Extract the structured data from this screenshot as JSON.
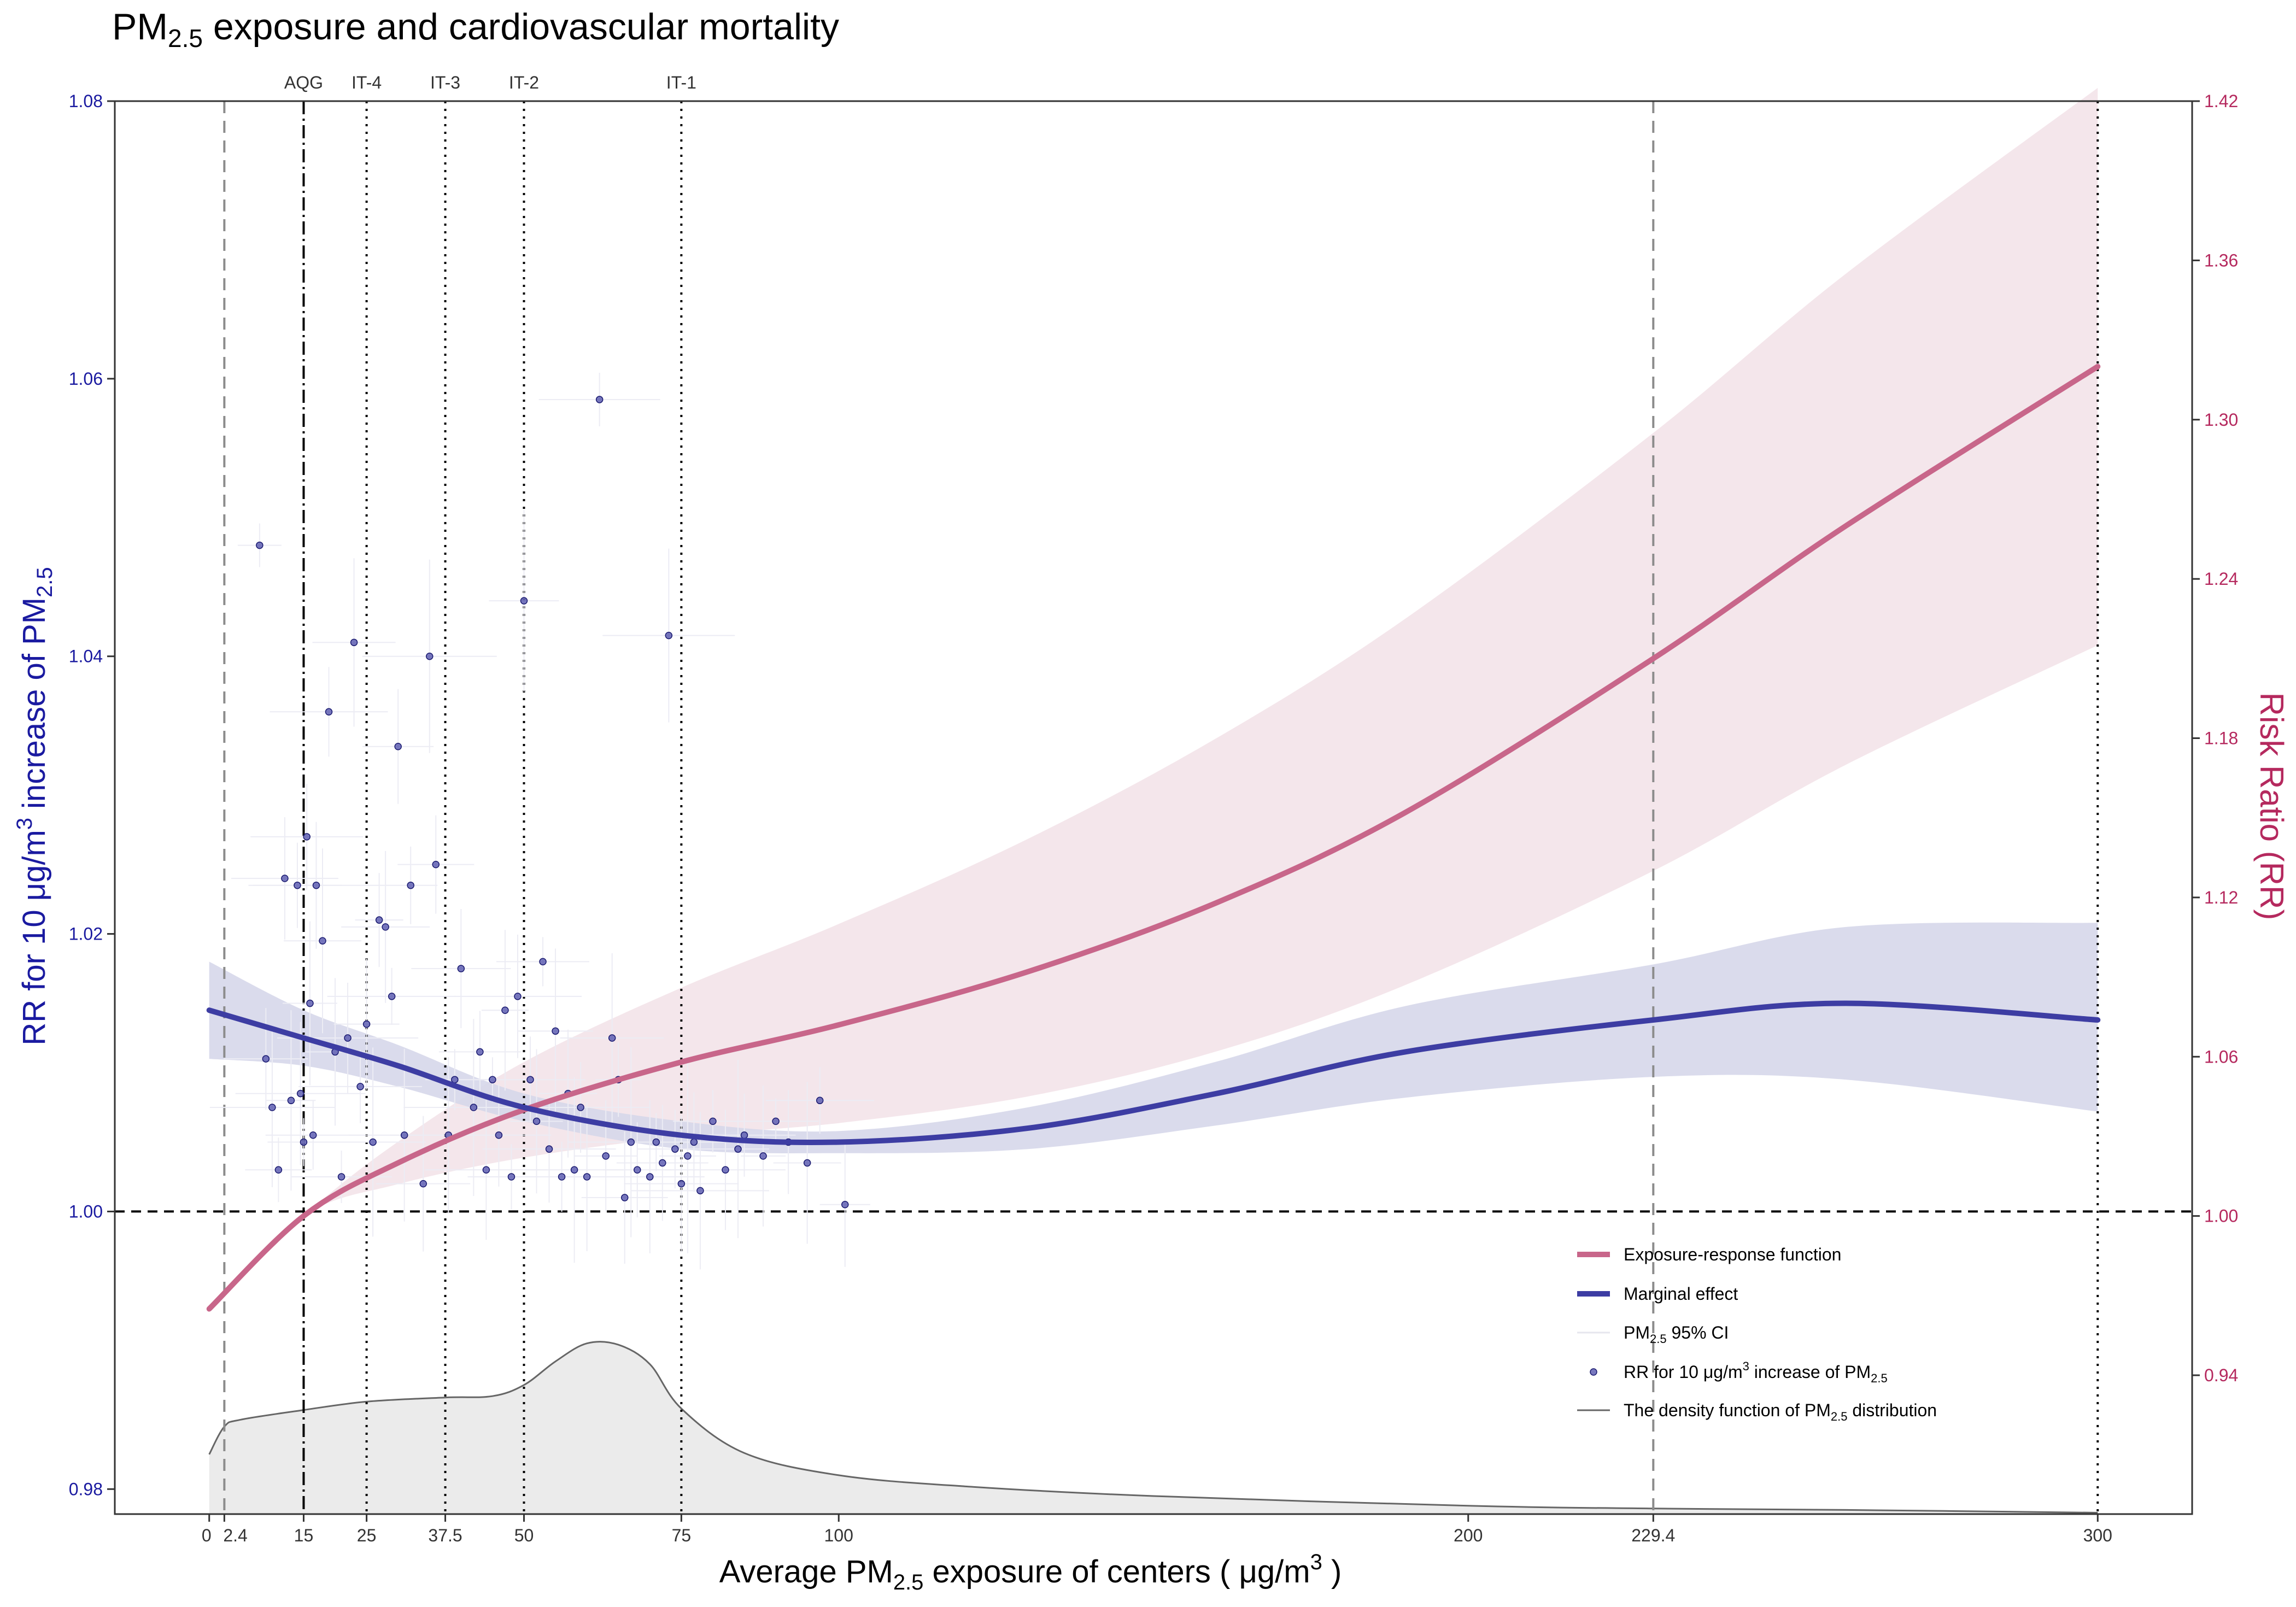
{
  "chart_data": {
    "type": "line",
    "title": {
      "prefix": "PM",
      "sub": "2.5",
      "suffix": "  exposure and cardiovascular mortality"
    },
    "xlabel": {
      "prefix": "Average PM",
      "sub": "2.5",
      "suffix": " exposure of centers ( μg/m",
      "sup": "3",
      "end": " )"
    },
    "ylabel_left": {
      "prefix": "RR for 10 μg/m",
      "sup": "3",
      "middle": " increase of PM",
      "sub": "2.5"
    },
    "ylabel_right": "Risk Ratio (RR)",
    "colors": {
      "left_axis": "#1a1aa0",
      "right_axis": "#b5295e",
      "erf_line": "#c8668a",
      "erf_band": "#f3e3e9",
      "marginal_line": "#3d3da3",
      "marginal_band": "#d6d7ea",
      "points": "#4b4ba8",
      "density_fill": "#ebebeb",
      "density_line": "#666666"
    },
    "x_axis": {
      "range": [
        -15,
        315
      ],
      "ticks": [
        0,
        2.4,
        15,
        25,
        37.5,
        50,
        75,
        100,
        200,
        229.4,
        300
      ],
      "tick_labels": [
        "0",
        "2.4",
        "15",
        "25",
        "37.5",
        "50",
        "75",
        "100",
        "200",
        "229.4",
        "300"
      ]
    },
    "y_left_axis": {
      "range": [
        0.9782,
        1.08
      ],
      "ticks": [
        0.98,
        1.0,
        1.02,
        1.04,
        1.06,
        1.08
      ],
      "tick_labels": [
        "0.98",
        "1.00",
        "1.02",
        "1.04",
        "1.06",
        "1.08"
      ]
    },
    "y_right_axis": {
      "range": [
        0.8877,
        1.42
      ],
      "ticks": [
        0.94,
        1.0,
        1.06,
        1.12,
        1.18,
        1.24,
        1.3,
        1.36,
        1.42
      ],
      "tick_labels": [
        "0.94",
        "1.00",
        "1.06",
        "1.12",
        "1.18",
        "1.24",
        "1.30",
        "1.36",
        "1.42"
      ]
    },
    "reference_line_y": 1.0,
    "guidelines": [
      {
        "x": 15,
        "label": "AQG",
        "style": "dashdot"
      },
      {
        "x": 25,
        "label": "IT-4",
        "style": "dotted"
      },
      {
        "x": 37.5,
        "label": "IT-3",
        "style": "dotted"
      },
      {
        "x": 50,
        "label": "IT-2",
        "style": "dotted"
      },
      {
        "x": 75,
        "label": "IT-1",
        "style": "dotted"
      }
    ],
    "range_lines": [
      {
        "x": 2.4,
        "style": "dashed"
      },
      {
        "x": 229.4,
        "style": "dashed"
      },
      {
        "x": 300,
        "style": "dotted"
      }
    ],
    "series": [
      {
        "name": "Exposure-response function",
        "axis": "right",
        "x": [
          0,
          15,
          30,
          50,
          75,
          100,
          130,
          160,
          190,
          229.4,
          260,
          300
        ],
        "y": [
          0.965,
          1.0,
          1.02,
          1.04,
          1.058,
          1.072,
          1.092,
          1.118,
          1.152,
          1.21,
          1.26,
          1.32
        ],
        "ci_lower": [
          0.965,
          1.0,
          1.012,
          1.022,
          1.03,
          1.035,
          1.045,
          1.062,
          1.087,
          1.13,
          1.17,
          1.215
        ],
        "ci_upper": [
          0.965,
          1.0,
          1.028,
          1.058,
          1.086,
          1.11,
          1.142,
          1.18,
          1.225,
          1.295,
          1.355,
          1.425
        ]
      },
      {
        "name": "Marginal effect",
        "axis": "left",
        "x": [
          0,
          15,
          30,
          50,
          75,
          100,
          130,
          160,
          190,
          229.4,
          260,
          300
        ],
        "y": [
          1.0145,
          1.0125,
          1.0105,
          1.0075,
          1.0055,
          1.005,
          1.006,
          1.0085,
          1.0115,
          1.0138,
          1.015,
          1.0138
        ],
        "ci_lower": [
          1.011,
          1.0105,
          1.009,
          1.0065,
          1.0045,
          1.0042,
          1.0045,
          1.0062,
          1.0082,
          1.0097,
          1.0095,
          1.0072
        ],
        "ci_upper": [
          1.018,
          1.0145,
          1.012,
          1.0085,
          1.0065,
          1.0058,
          1.0075,
          1.0108,
          1.0148,
          1.0178,
          1.0205,
          1.0208
        ]
      }
    ],
    "points": {
      "name": "RR for 10 μg/m3 increase of PM2.5",
      "axis": "left",
      "x": [
        8,
        9,
        10,
        11,
        12,
        13,
        14,
        14.5,
        15,
        15.5,
        16,
        16.5,
        17,
        18,
        19,
        20,
        21,
        22,
        23,
        24,
        25,
        26,
        27,
        28,
        29,
        30,
        31,
        32,
        34,
        35,
        36,
        38,
        39,
        40,
        42,
        43,
        44,
        45,
        46,
        47,
        48,
        49,
        50,
        51,
        52,
        53,
        54,
        55,
        56,
        57,
        58,
        59,
        60,
        62,
        63,
        64,
        65,
        66,
        67,
        68,
        70,
        71,
        72,
        73,
        74,
        75,
        76,
        77,
        78,
        80,
        82,
        84,
        85,
        88,
        90,
        92,
        95,
        97,
        101
      ],
      "y": [
        1.048,
        1.011,
        1.0075,
        1.003,
        1.024,
        1.008,
        1.0235,
        1.0085,
        1.005,
        1.027,
        1.015,
        1.0055,
        1.0235,
        1.0195,
        1.036,
        1.0115,
        1.0025,
        1.0125,
        1.041,
        1.009,
        1.0135,
        1.005,
        1.021,
        1.0205,
        1.0155,
        1.0335,
        1.0055,
        1.0235,
        1.002,
        1.04,
        1.025,
        1.0055,
        1.0095,
        1.0175,
        1.0075,
        1.0115,
        1.003,
        1.0095,
        1.0055,
        1.0145,
        1.0025,
        1.0155,
        1.044,
        1.0095,
        1.0065,
        1.018,
        1.0045,
        1.013,
        1.0025,
        1.0085,
        1.003,
        1.0075,
        1.0025,
        1.0585,
        1.004,
        1.0125,
        1.0095,
        1.001,
        1.005,
        1.003,
        1.0025,
        1.005,
        1.0035,
        1.0415,
        1.0045,
        1.002,
        1.004,
        1.005,
        1.0015,
        1.0065,
        1.003,
        1.0045,
        1.0055,
        1.004,
        1.0065,
        1.005,
        1.0035,
        1.008,
        1.0005
      ]
    },
    "density": {
      "name": "The density function of PM2.5 distribution",
      "x": [
        0,
        2.4,
        5,
        15,
        25,
        37.5,
        45,
        50,
        55,
        60,
        65,
        70,
        75,
        85,
        100,
        120,
        150,
        200,
        229.4,
        260,
        300
      ],
      "y": [
        0.9825,
        0.9845,
        0.985,
        0.9857,
        0.9863,
        0.9866,
        0.9867,
        0.9875,
        0.9892,
        0.9905,
        0.9904,
        0.989,
        0.9858,
        0.9826,
        0.981,
        0.9802,
        0.9795,
        0.9788,
        0.9786,
        0.9785,
        0.9783
      ]
    },
    "legend": {
      "position": "bottom-right",
      "entries": [
        {
          "key": "erf",
          "label": "Exposure-response function"
        },
        {
          "key": "marginal",
          "label": "Marginal effect"
        },
        {
          "key": "ci",
          "prefix": "PM",
          "sub": "2.5",
          "suffix": " 95% CI"
        },
        {
          "key": "points",
          "prefix": "RR for 10 μg/m",
          "sup": "3",
          "middle": " increase of PM",
          "sub": "2.5"
        },
        {
          "key": "density",
          "prefix": "The density function of PM",
          "sub": "2.5",
          "suffix": " distribution"
        }
      ]
    }
  }
}
